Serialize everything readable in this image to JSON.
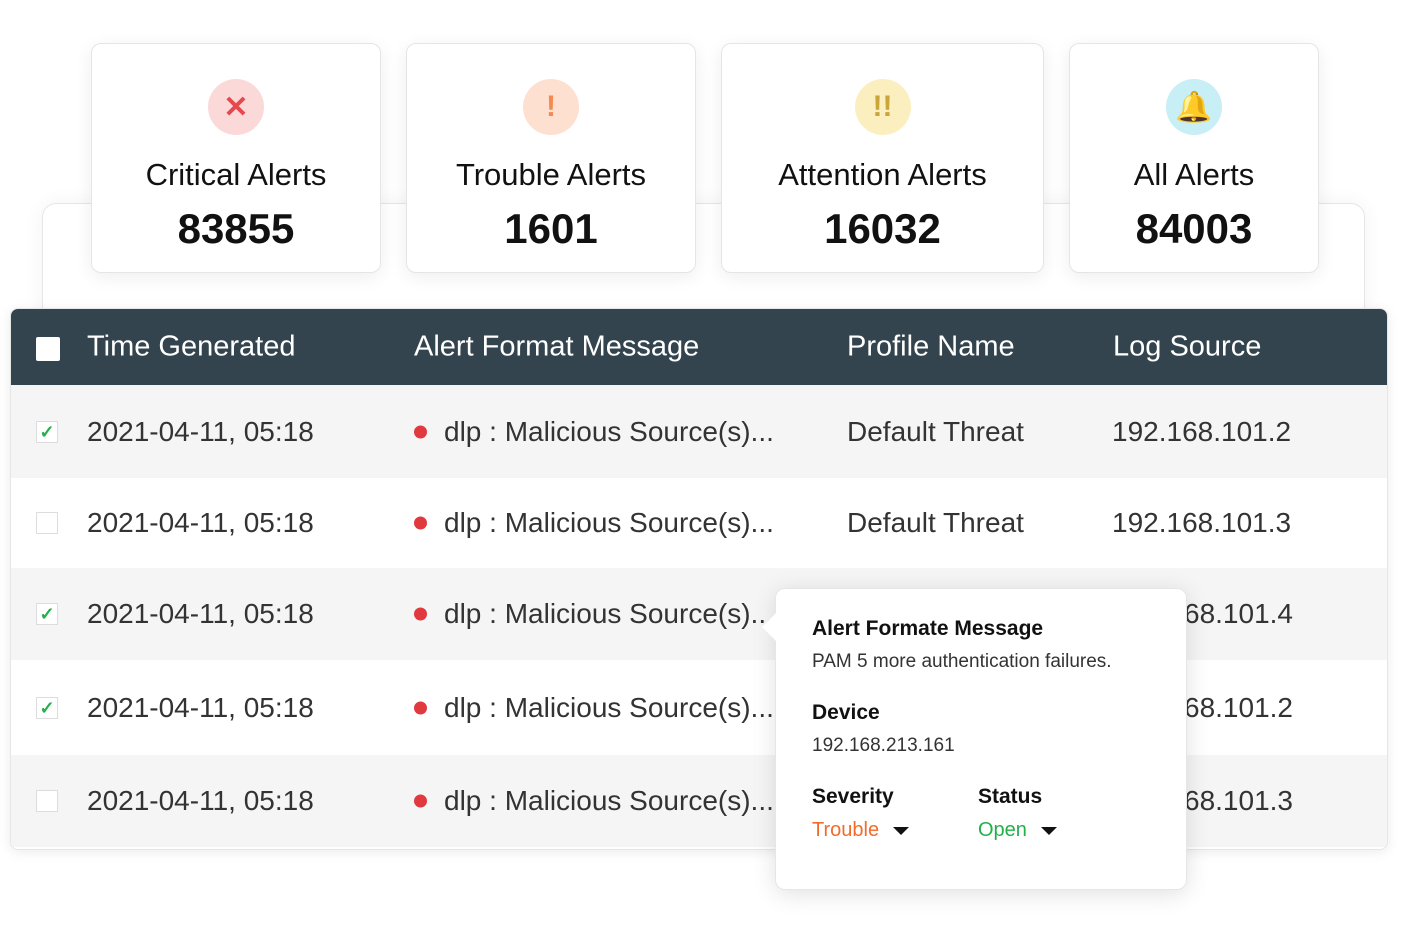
{
  "cards": [
    {
      "label": "Critical Alerts",
      "value": "83855",
      "icon": "x-icon",
      "glyph": "✕",
      "color": "#e5484d",
      "bg": "#fbd9d9"
    },
    {
      "label": "Trouble Alerts",
      "value": "1601",
      "icon": "exclamation-icon",
      "glyph": "!",
      "color": "#f5894f",
      "bg": "#fde0d0"
    },
    {
      "label": "Attention Alerts",
      "value": "16032",
      "icon": "double-exclamation-icon",
      "glyph": "!!",
      "color": "#c9a53a",
      "bg": "#fbefc0"
    },
    {
      "label": "All Alerts",
      "value": "84003",
      "icon": "bell-icon",
      "glyph": "🔔",
      "color": "#3fb3cf",
      "bg": "#c8eef6"
    }
  ],
  "table": {
    "headers": [
      "Time Generated",
      "Alert Format Message",
      "Profile Name",
      "Log Source"
    ],
    "rows": [
      {
        "checked": true,
        "time": "2021-04-11, 05:18",
        "message": "dlp : Malicious Source(s)...",
        "profile": "Default Threat",
        "source": "192.168.101.2"
      },
      {
        "checked": false,
        "time": "2021-04-11, 05:18",
        "message": "dlp : Malicious Source(s)...",
        "profile": "Default Threat",
        "source": "192.168.101.3"
      },
      {
        "checked": true,
        "time": "2021-04-11, 05:18",
        "message": "dlp : Malicious Source(s)...",
        "profile": "",
        "source": "68.101.4"
      },
      {
        "checked": true,
        "time": "2021-04-11, 05:18",
        "message": "dlp : Malicious Source(s)...",
        "profile": "",
        "source": "68.101.2"
      },
      {
        "checked": false,
        "time": "2021-04-11, 05:18",
        "message": "dlp : Malicious Source(s)...",
        "profile": "",
        "source": "68.101.3"
      }
    ]
  },
  "popover": {
    "message_label": "Alert Formate Message",
    "message": "PAM 5 more authentication failures.",
    "device_label": "Device",
    "device": "192.168.213.161",
    "severity_label": "Severity",
    "severity": "Trouble",
    "severity_color": "#f26b2b",
    "status_label": "Status",
    "status": "Open",
    "status_color": "#22b04b"
  }
}
